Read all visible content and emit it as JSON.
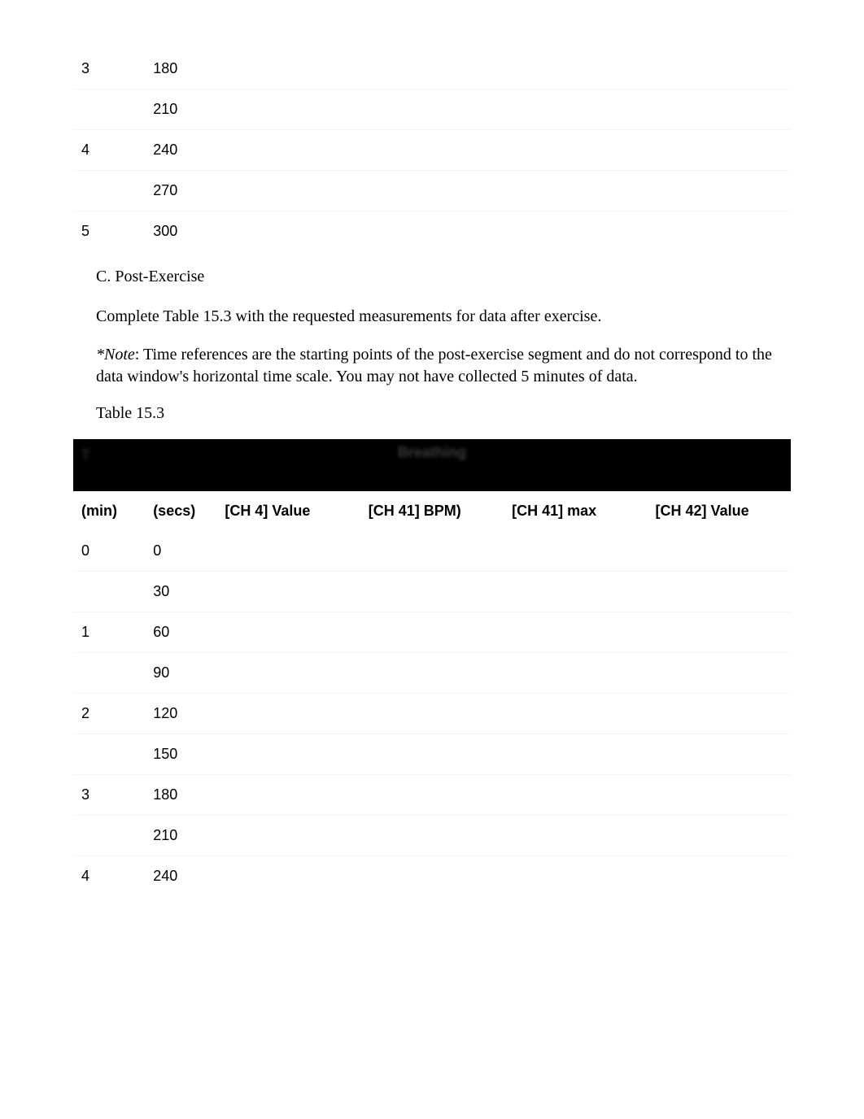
{
  "colors": {
    "background": "#ffffff",
    "text": "#000000",
    "headerBand": "#000000",
    "headerBandText": "#3a3a3a",
    "softBorder": "rgba(0,0,0,0.04)"
  },
  "typography": {
    "serifFamily": "Georgia, 'Times New Roman', serif",
    "sansFamily": "Arial, Helvetica, sans-serif",
    "bodyFontSize": 20,
    "tableFontSize": 18
  },
  "topTable": {
    "type": "table",
    "columns": [
      "(min)",
      "(secs)",
      "[CH 4] Value",
      "[CH 41] BPM)",
      "[CH 41] max",
      "[CH 42] Value"
    ],
    "col_widths_pct": [
      10,
      10,
      20,
      20,
      20,
      20
    ],
    "rows": [
      {
        "min": "3",
        "secs": "180",
        "vals": [
          "",
          "",
          "",
          ""
        ]
      },
      {
        "min": "",
        "secs": "210",
        "vals": [
          "",
          "",
          "",
          ""
        ]
      },
      {
        "min": "4",
        "secs": "240",
        "vals": [
          "",
          "",
          "",
          ""
        ]
      },
      {
        "min": "",
        "secs": "270",
        "vals": [
          "",
          "",
          "",
          ""
        ]
      },
      {
        "min": "5",
        "secs": "300",
        "vals": [
          "",
          "",
          "",
          ""
        ]
      }
    ]
  },
  "section": {
    "heading": "C. Post-Exercise",
    "instruction": "Complete Table 15.3 with the requested measurements for data after exercise.",
    "noteLabel": "*Note",
    "noteRest": ": Time references are the starting points of the post-exercise segment and do not correspond to the data window's horizontal time scale. You may not have collected 5 minutes of data.",
    "tableCaption": "Table 15.3"
  },
  "headerBand": {
    "leftBlurred": "T",
    "centerBlurred": "Breathing"
  },
  "bottomTable": {
    "type": "table",
    "columns": [
      "(min)",
      "(secs)",
      "[CH 4] Value",
      "[CH 41] BPM)",
      "[CH 41] max",
      "[CH 42] Value"
    ],
    "col_widths_pct": [
      10,
      10,
      20,
      20,
      20,
      20
    ],
    "rows": [
      {
        "min": "0",
        "secs": "0",
        "vals": [
          "",
          "",
          "",
          ""
        ]
      },
      {
        "min": "",
        "secs": "30",
        "vals": [
          "",
          "",
          "",
          ""
        ]
      },
      {
        "min": "1",
        "secs": "60",
        "vals": [
          "",
          "",
          "",
          ""
        ]
      },
      {
        "min": "",
        "secs": "90",
        "vals": [
          "",
          "",
          "",
          ""
        ]
      },
      {
        "min": "2",
        "secs": "120",
        "vals": [
          "",
          "",
          "",
          ""
        ]
      },
      {
        "min": "",
        "secs": "150",
        "vals": [
          "",
          "",
          "",
          ""
        ]
      },
      {
        "min": "3",
        "secs": "180",
        "vals": [
          "",
          "",
          "",
          ""
        ]
      },
      {
        "min": "",
        "secs": "210",
        "vals": [
          "",
          "",
          "",
          ""
        ]
      },
      {
        "min": "4",
        "secs": "240",
        "vals": [
          "",
          "",
          "",
          ""
        ]
      }
    ]
  }
}
